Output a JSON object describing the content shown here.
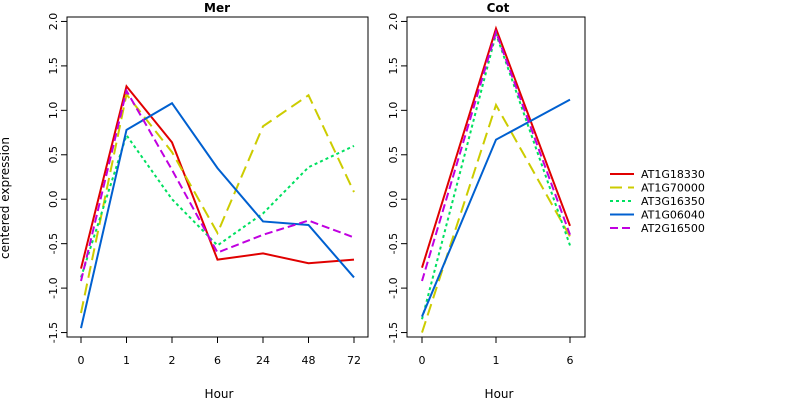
{
  "chart_data": [
    {
      "type": "line",
      "title": "Mer",
      "xlabel": "Hour",
      "ylabel": "centered expression",
      "categories": [
        "0",
        "1",
        "2",
        "6",
        "24",
        "48",
        "72"
      ],
      "ylim": [
        -1.55,
        2.05
      ],
      "yticks": [
        "-1.5",
        "-1.0",
        "-0.5",
        "0.0",
        "0.5",
        "1.0",
        "1.5",
        "2.0"
      ],
      "series": [
        {
          "name": "AT1G18330",
          "color": "#e00000",
          "dash": "solid",
          "values": [
            -0.78,
            1.27,
            0.64,
            -0.68,
            -0.61,
            -0.72,
            -0.68
          ]
        },
        {
          "name": "AT1G70000",
          "color": "#cccc00",
          "dash": "long-dash",
          "values": [
            -1.28,
            1.18,
            0.53,
            -0.38,
            0.82,
            1.17,
            0.08
          ]
        },
        {
          "name": "AT3G16350",
          "color": "#00e060",
          "dash": "dotted",
          "values": [
            -0.88,
            0.72,
            0.0,
            -0.52,
            -0.16,
            0.36,
            0.6
          ]
        },
        {
          "name": "AT1G06040",
          "color": "#0060d0",
          "dash": "solid",
          "values": [
            -1.45,
            0.78,
            1.08,
            0.35,
            -0.25,
            -0.29,
            -0.88
          ]
        },
        {
          "name": "AT2G16500",
          "color": "#c000e0",
          "dash": "dashed",
          "values": [
            -0.92,
            1.22,
            0.33,
            -0.6,
            -0.4,
            -0.24,
            -0.43
          ]
        }
      ]
    },
    {
      "type": "line",
      "title": "Cot",
      "xlabel": "Hour",
      "ylabel": "",
      "categories": [
        "0",
        "1",
        "6"
      ],
      "ylim": [
        -1.55,
        2.05
      ],
      "yticks": [
        "-1.5",
        "-1.0",
        "-0.5",
        "0.0",
        "0.5",
        "1.0",
        "1.5",
        "2.0"
      ],
      "series": [
        {
          "name": "AT1G18330",
          "color": "#e00000",
          "dash": "solid",
          "values": [
            -0.77,
            1.92,
            -0.3
          ]
        },
        {
          "name": "AT1G70000",
          "color": "#cccc00",
          "dash": "long-dash",
          "values": [
            -1.5,
            1.06,
            -0.42
          ]
        },
        {
          "name": "AT3G16350",
          "color": "#00e060",
          "dash": "dotted",
          "values": [
            -1.35,
            1.86,
            -0.52
          ]
        },
        {
          "name": "AT1G06040",
          "color": "#0060d0",
          "dash": "solid",
          "values": [
            -1.32,
            0.67,
            1.12
          ]
        },
        {
          "name": "AT2G16500",
          "color": "#c000e0",
          "dash": "dashed",
          "values": [
            -0.92,
            1.88,
            -0.4
          ]
        }
      ]
    }
  ],
  "legend": {
    "placement": "right",
    "items": [
      "AT1G18330",
      "AT1G70000",
      "AT3G16350",
      "AT1G06040",
      "AT2G16500"
    ]
  }
}
